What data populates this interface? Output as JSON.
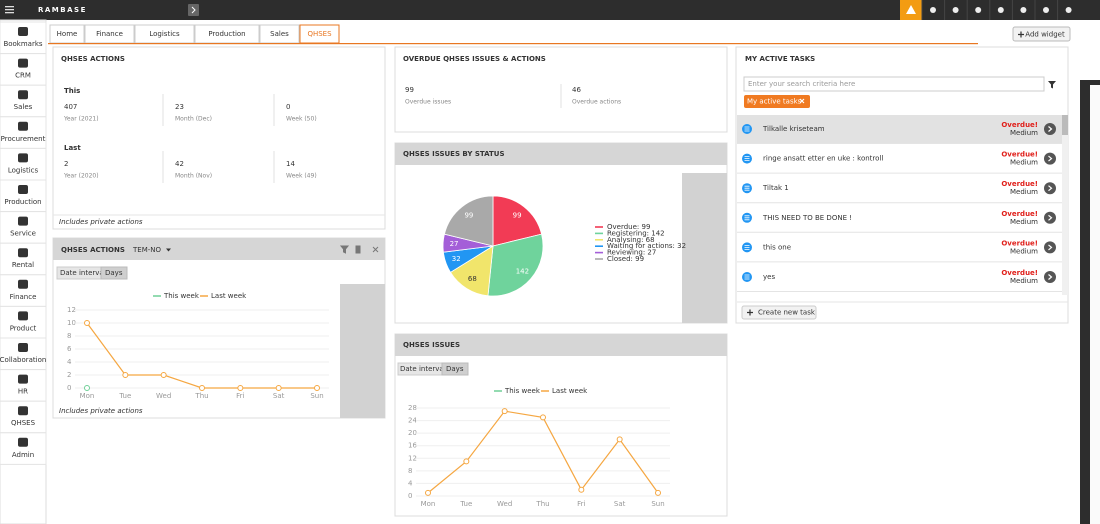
{
  "app": {
    "logo": "RAMBASE"
  },
  "tabs": [
    "Home",
    "Finance",
    "Logistics",
    "Production",
    "Sales",
    "QHSES"
  ],
  "active_tab": 5,
  "add_widget": "Add widget",
  "sidebar": [
    "Bookmarks",
    "CRM",
    "Sales",
    "Procurement",
    "Logistics",
    "Production",
    "Service",
    "Rental",
    "Finance",
    "Product",
    "Collaboration",
    "HR",
    "QHSES",
    "Admin"
  ],
  "actions_summary": {
    "title": "QHSES ACTIONS",
    "groups": [
      {
        "label": "This",
        "items": [
          {
            "value": 407,
            "label": "Year (2021)"
          },
          {
            "value": 23,
            "label": "Month (Dec)"
          },
          {
            "value": 0,
            "label": "Week (50)"
          }
        ]
      },
      {
        "label": "Last",
        "items": [
          {
            "value": 2,
            "label": "Year (2020)"
          },
          {
            "value": 42,
            "label": "Month (Nov)"
          },
          {
            "value": 14,
            "label": "Week (49)"
          }
        ]
      }
    ],
    "footer": "Includes private actions"
  },
  "actions_chart": {
    "title": "QHSES ACTIONS",
    "filter": "TEM-NO",
    "interval_label": "Date interval",
    "interval": "Days",
    "footer": "Includes private actions",
    "chart": {
      "type": "line",
      "categories": [
        "Mon",
        "Tue",
        "Wed",
        "Thu",
        "Fri",
        "Sat",
        "Sun"
      ],
      "series": [
        {
          "name": "This week",
          "color": "#6fcf97",
          "values": [
            0,
            null,
            null,
            null,
            null,
            null,
            null
          ]
        },
        {
          "name": "Last week",
          "color": "#f5a742",
          "values": [
            10,
            2,
            2,
            0,
            0,
            0,
            0
          ]
        }
      ],
      "ylim": [
        0,
        12
      ],
      "yticks": [
        0,
        2,
        4,
        6,
        8,
        10,
        12
      ],
      "grid": true
    }
  },
  "overdue": {
    "title": "OVERDUE QHSES ISSUES & ACTIONS",
    "items": [
      {
        "value": 99,
        "label": "Overdue issues"
      },
      {
        "value": 46,
        "label": "Overdue actions"
      }
    ]
  },
  "issues_by_status": {
    "title": "QHSES ISSUES BY STATUS",
    "chart": {
      "type": "pie",
      "categories": [
        "Overdue",
        "Registering",
        "Analysing",
        "Waiting for actions",
        "Reviewing",
        "Closed"
      ],
      "values": [
        99,
        142,
        68,
        32,
        27,
        99
      ],
      "colors": [
        "#f23b55",
        "#6fd39c",
        "#f1e56b",
        "#2196f3",
        "#a45fd8",
        "#a9a9a9"
      ]
    }
  },
  "issues_chart": {
    "title": "QHSES ISSUES",
    "interval_label": "Date interval",
    "interval": "Days",
    "chart": {
      "type": "line",
      "categories": [
        "Mon",
        "Tue",
        "Wed",
        "Thu",
        "Fri",
        "Sat",
        "Sun"
      ],
      "series": [
        {
          "name": "This week",
          "color": "#6fcf97",
          "values": [
            null,
            null,
            null,
            null,
            null,
            null,
            null
          ]
        },
        {
          "name": "Last week",
          "color": "#f5a742",
          "values": [
            1,
            11,
            27,
            25,
            2,
            18,
            1
          ]
        }
      ],
      "ylim": [
        0,
        28
      ],
      "yticks": [
        0,
        4,
        8,
        12,
        16,
        20,
        24,
        28
      ],
      "grid": true
    }
  },
  "tasks": {
    "title": "MY ACTIVE TASKS",
    "search_placeholder": "Enter your search criteria here",
    "filter": "My active tasks",
    "items": [
      {
        "title": "Tilkalle kriseteam",
        "status": "Overdue!",
        "priority": "Medium"
      },
      {
        "title": "ringe ansatt etter en uke : kontroll",
        "status": "Overdue!",
        "priority": "Medium"
      },
      {
        "title": "Tiltak 1",
        "status": "Overdue!",
        "priority": "Medium"
      },
      {
        "title": "THIS NEED TO BE DONE !",
        "status": "Overdue!",
        "priority": "Medium"
      },
      {
        "title": "this one",
        "status": "Overdue!",
        "priority": "Medium"
      },
      {
        "title": "yes",
        "status": "Overdue!",
        "priority": "Medium"
      }
    ],
    "create": "Create new task"
  }
}
